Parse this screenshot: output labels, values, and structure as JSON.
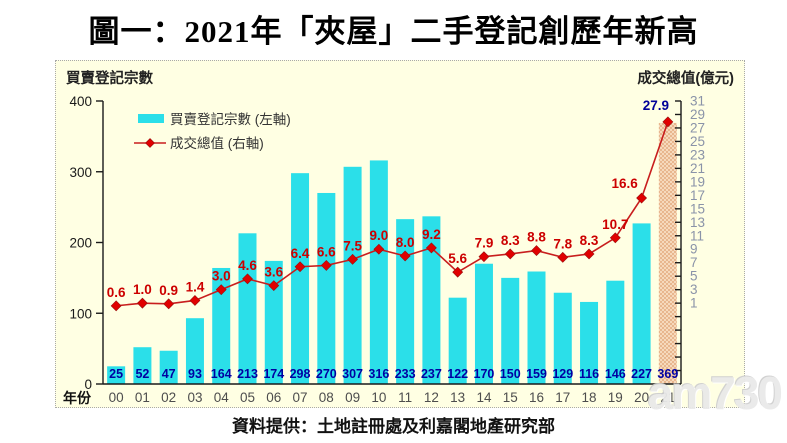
{
  "title": "圖一：2021年「夾屋」二手登記創歷年新高",
  "panel": {
    "left_axis_title": "買賣登記宗數",
    "right_axis_title": "成交總值(億元)",
    "x_axis_title": "年份"
  },
  "legend": {
    "bar_label": "買賣登記宗數 (左軸)",
    "line_label": "成交總值 (右軸)"
  },
  "caption": "資料提供：土地註冊處及利嘉閣地產研究部",
  "watermark": "am730",
  "colors": {
    "panel_bg": "#ffffe3",
    "bar": "#2bdfe9",
    "bar_highlight_bg": "#f6d9bc",
    "bar_highlight_dot": "#de9e6e",
    "line": "#c81e1e",
    "marker": "#e00000",
    "marker_edge": "#990f0f",
    "bar_value_label": "#0000a2",
    "line_value_label": "#cc0000",
    "last_value_label": "#000099",
    "axis": "#1a1a1a",
    "left_tick_label": "#1a1a1a",
    "right_tick_label": "#8a93a8",
    "year_label": "#4d4d4d",
    "legend_text": "#333333"
  },
  "chart_data": {
    "type": "bar",
    "subtype": "bar+line combo, dual axis",
    "title": "圖一：2021年「夾屋」二手登記創歷年新高",
    "xlabel": "年份",
    "categories": [
      "00",
      "01",
      "02",
      "03",
      "04",
      "05",
      "06",
      "07",
      "08",
      "09",
      "10",
      "11",
      "12",
      "13",
      "14",
      "15",
      "16",
      "17",
      "18",
      "19",
      "20",
      "21"
    ],
    "series": [
      {
        "name": "買賣登記宗數 (左軸)",
        "chart_type": "bar",
        "axis": "left",
        "values": [
          25,
          52,
          47,
          93,
          164,
          213,
          174,
          298,
          270,
          307,
          316,
          233,
          237,
          122,
          170,
          150,
          159,
          129,
          116,
          146,
          227,
          369
        ]
      },
      {
        "name": "成交總值 (右軸)",
        "chart_type": "line",
        "axis": "right",
        "values": [
          0.6,
          1.0,
          0.9,
          1.4,
          3.0,
          4.6,
          3.6,
          6.4,
          6.6,
          7.5,
          9.0,
          8.0,
          9.2,
          5.6,
          7.9,
          8.3,
          8.8,
          7.8,
          8.3,
          10.7,
          16.6,
          27.9
        ]
      }
    ],
    "left_axis": {
      "title": "買賣登記宗數",
      "min": 0,
      "max": 400,
      "ticks": [
        0,
        100,
        200,
        300,
        400
      ]
    },
    "right_axis": {
      "title": "成交總值(億元)",
      "min": -11,
      "max": 31,
      "tick_step": 2,
      "label_min": 1,
      "label_max": 31,
      "labels": [
        31,
        29,
        27,
        25,
        23,
        21,
        19,
        17,
        15,
        13,
        11,
        9,
        7,
        5,
        3,
        1
      ]
    },
    "highlight": {
      "index": 21,
      "note": "2021 bar drawn in dotted peach, labels in navy"
    },
    "grid": false,
    "legend_position": "top-left inside plot"
  }
}
